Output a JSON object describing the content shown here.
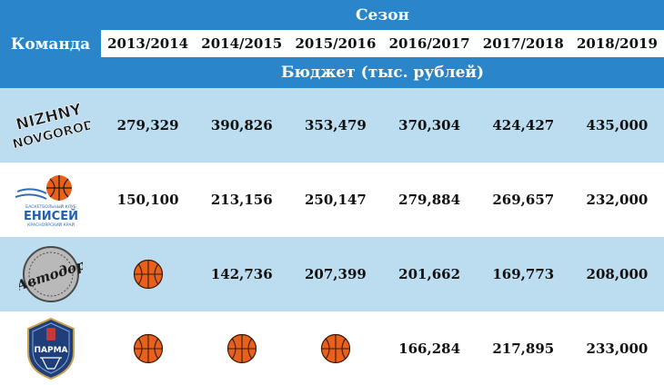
{
  "header": {
    "team_label": "Команда",
    "season_label": "Сезон",
    "budget_label": "Бюджет (тыс. рублей)",
    "seasons": [
      "2013/2014",
      "2014/2015",
      "2015/2016",
      "2016/2017",
      "2017/2018",
      "2018/2019"
    ]
  },
  "colors": {
    "header_blue": "#2a86c8",
    "row_shaded": "#bcdcf0",
    "ball_orange": "#e8601c"
  },
  "rows": [
    {
      "team_logo": "nizhny-novgorod-logo",
      "logo_text": [
        "NIZHNY",
        "NOVGOROD"
      ],
      "values": [
        "279,329",
        "390,826",
        "353,479",
        "370,304",
        "424,427",
        "435,000"
      ]
    },
    {
      "team_logo": "enisey-logo",
      "logo_text": [
        "БАСКЕТБОЛЬНЫЙ КЛУБ",
        "ЕНИСЕЙ",
        "КРАСНОЯРСКИЙ КРАЙ"
      ],
      "values": [
        "150,100",
        "213,156",
        "250,147",
        "279,884",
        "269,657",
        "232,000"
      ]
    },
    {
      "team_logo": "avtodor-logo",
      "logo_text": [
        "Автодор"
      ],
      "values": [
        "basketball-icon",
        "142,736",
        "207,399",
        "201,662",
        "169,773",
        "208,000"
      ]
    },
    {
      "team_logo": "parma-logo",
      "logo_text": [
        "ПАРМА"
      ],
      "values": [
        "basketball-icon",
        "basketball-icon",
        "basketball-icon",
        "166,284",
        "217,895",
        "233,000"
      ]
    }
  ]
}
